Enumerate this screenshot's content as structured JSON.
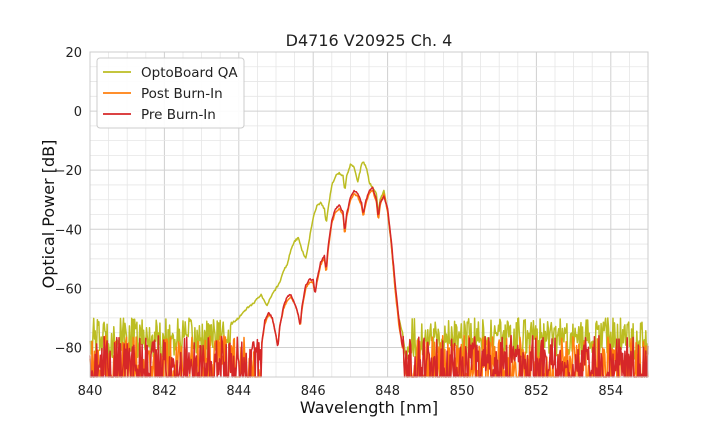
{
  "chart_data": {
    "type": "line",
    "title": "D4716 V20925 Ch. 4",
    "xlabel": "Wavelength [nm]",
    "ylabel": "Optical Power [dB]",
    "xlim": [
      840,
      855
    ],
    "ylim": [
      -90,
      20
    ],
    "x_ticks": [
      840,
      842,
      844,
      846,
      848,
      850,
      852,
      854
    ],
    "x_tick_labels": [
      "840",
      "842",
      "844",
      "846",
      "848",
      "850",
      "852",
      "854"
    ],
    "y_ticks": [
      20,
      0,
      -20,
      -40,
      -60,
      -80
    ],
    "y_tick_labels": [
      "20",
      "0",
      "−20",
      "−40",
      "−60",
      "−80"
    ],
    "grid": true,
    "legend_position": "upper-left",
    "series": [
      {
        "name": "OptoBoard QA",
        "color": "#bcbd22",
        "noise_floor": {
          "mean": -77,
          "spread": 7,
          "dropouts": false
        },
        "points": [
          [
            843.8,
            -72
          ],
          [
            844.0,
            -70
          ],
          [
            844.2,
            -67
          ],
          [
            844.4,
            -65
          ],
          [
            844.6,
            -62
          ],
          [
            844.75,
            -66
          ],
          [
            844.9,
            -62
          ],
          [
            845.1,
            -58
          ],
          [
            845.2,
            -54
          ],
          [
            845.3,
            -52
          ],
          [
            845.4,
            -47
          ],
          [
            845.5,
            -44
          ],
          [
            845.6,
            -43
          ],
          [
            845.7,
            -47
          ],
          [
            845.8,
            -50
          ],
          [
            845.9,
            -43
          ],
          [
            846.0,
            -36
          ],
          [
            846.1,
            -32
          ],
          [
            846.2,
            -31
          ],
          [
            846.3,
            -33
          ],
          [
            846.35,
            -38
          ],
          [
            846.4,
            -33
          ],
          [
            846.5,
            -25
          ],
          [
            846.6,
            -22
          ],
          [
            846.7,
            -21
          ],
          [
            846.8,
            -22
          ],
          [
            846.85,
            -27
          ],
          [
            846.9,
            -22
          ],
          [
            847.0,
            -18
          ],
          [
            847.1,
            -19
          ],
          [
            847.2,
            -24
          ],
          [
            847.3,
            -18
          ],
          [
            847.35,
            -17
          ],
          [
            847.45,
            -20
          ],
          [
            847.5,
            -24
          ],
          [
            847.6,
            -26
          ],
          [
            847.7,
            -28
          ],
          [
            847.75,
            -35
          ],
          [
            847.8,
            -30
          ],
          [
            847.9,
            -27
          ],
          [
            848.0,
            -34
          ],
          [
            848.1,
            -45
          ],
          [
            848.2,
            -60
          ],
          [
            848.3,
            -70
          ],
          [
            848.4,
            -75
          ],
          [
            848.5,
            -84
          ]
        ]
      },
      {
        "name": "Post Burn-In",
        "color": "#ff7f0e",
        "noise_floor": {
          "mean": -84,
          "spread": 8,
          "dropouts": true
        },
        "points": [
          [
            844.6,
            -80
          ],
          [
            844.7,
            -72
          ],
          [
            844.8,
            -69
          ],
          [
            844.9,
            -70
          ],
          [
            845.0,
            -76
          ],
          [
            845.05,
            -80
          ],
          [
            845.1,
            -73
          ],
          [
            845.2,
            -67
          ],
          [
            845.3,
            -64
          ],
          [
            845.4,
            -63
          ],
          [
            845.5,
            -65
          ],
          [
            845.6,
            -69
          ],
          [
            845.65,
            -73
          ],
          [
            845.7,
            -67
          ],
          [
            845.8,
            -60
          ],
          [
            845.9,
            -58
          ],
          [
            846.0,
            -58
          ],
          [
            846.05,
            -62
          ],
          [
            846.1,
            -58
          ],
          [
            846.2,
            -52
          ],
          [
            846.3,
            -50
          ],
          [
            846.35,
            -55
          ],
          [
            846.4,
            -47
          ],
          [
            846.5,
            -38
          ],
          [
            846.6,
            -34
          ],
          [
            846.7,
            -33
          ],
          [
            846.8,
            -35
          ],
          [
            846.85,
            -42
          ],
          [
            846.9,
            -36
          ],
          [
            847.0,
            -30
          ],
          [
            847.1,
            -28
          ],
          [
            847.2,
            -29
          ],
          [
            847.3,
            -32
          ],
          [
            847.35,
            -36
          ],
          [
            847.4,
            -32
          ],
          [
            847.5,
            -28
          ],
          [
            847.6,
            -27
          ],
          [
            847.7,
            -31
          ],
          [
            847.75,
            -37
          ],
          [
            847.8,
            -32
          ],
          [
            847.9,
            -28
          ],
          [
            848.0,
            -34
          ],
          [
            848.1,
            -45
          ],
          [
            848.2,
            -60
          ],
          [
            848.3,
            -72
          ],
          [
            848.4,
            -80
          ]
        ]
      },
      {
        "name": "Pre Burn-In",
        "color": "#d62728",
        "noise_floor": {
          "mean": -84,
          "spread": 8,
          "dropouts": true
        },
        "points": [
          [
            844.6,
            -80
          ],
          [
            844.7,
            -71
          ],
          [
            844.8,
            -68
          ],
          [
            844.9,
            -70
          ],
          [
            845.0,
            -76
          ],
          [
            845.05,
            -80
          ],
          [
            845.1,
            -73
          ],
          [
            845.2,
            -66
          ],
          [
            845.3,
            -63
          ],
          [
            845.4,
            -62
          ],
          [
            845.5,
            -65
          ],
          [
            845.6,
            -69
          ],
          [
            845.65,
            -73
          ],
          [
            845.7,
            -66
          ],
          [
            845.8,
            -59
          ],
          [
            845.9,
            -57
          ],
          [
            846.0,
            -57
          ],
          [
            846.05,
            -62
          ],
          [
            846.1,
            -57
          ],
          [
            846.2,
            -51
          ],
          [
            846.3,
            -49
          ],
          [
            846.35,
            -54
          ],
          [
            846.4,
            -46
          ],
          [
            846.5,
            -37
          ],
          [
            846.6,
            -33
          ],
          [
            846.7,
            -32
          ],
          [
            846.8,
            -34
          ],
          [
            846.85,
            -41
          ],
          [
            846.9,
            -35
          ],
          [
            847.0,
            -29
          ],
          [
            847.1,
            -27
          ],
          [
            847.2,
            -28
          ],
          [
            847.3,
            -31
          ],
          [
            847.35,
            -35
          ],
          [
            847.4,
            -31
          ],
          [
            847.5,
            -27
          ],
          [
            847.6,
            -26
          ],
          [
            847.7,
            -30
          ],
          [
            847.75,
            -36
          ],
          [
            847.8,
            -31
          ],
          [
            847.9,
            -29
          ],
          [
            848.0,
            -33
          ],
          [
            848.1,
            -44
          ],
          [
            848.2,
            -58
          ],
          [
            848.3,
            -70
          ],
          [
            848.4,
            -80
          ]
        ]
      }
    ]
  }
}
